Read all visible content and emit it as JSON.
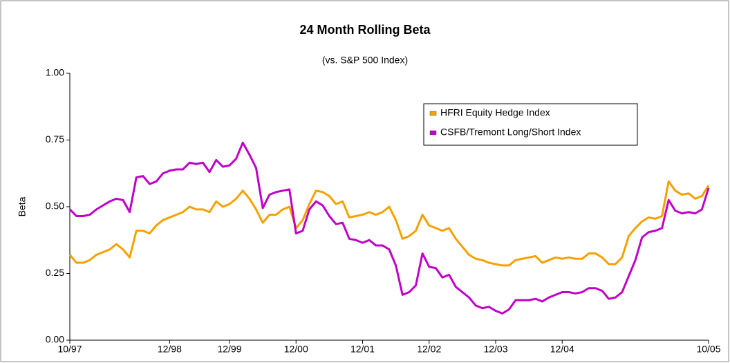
{
  "chart_data": {
    "type": "line",
    "title": "24 Month Rolling Beta",
    "subtitle": "(vs. S&P 500 Index)",
    "y_label": "Beta",
    "categories": [
      "10/97",
      null,
      null,
      null,
      null,
      null,
      null,
      null,
      null,
      null,
      null,
      null,
      null,
      null,
      null,
      "12/98",
      null,
      null,
      null,
      null,
      null,
      null,
      null,
      null,
      "12/99",
      null,
      null,
      null,
      null,
      null,
      null,
      null,
      null,
      null,
      "12/00",
      null,
      null,
      null,
      null,
      null,
      null,
      null,
      null,
      null,
      "12/01",
      null,
      null,
      null,
      null,
      null,
      null,
      null,
      null,
      null,
      "12/02",
      null,
      null,
      null,
      null,
      null,
      null,
      null,
      null,
      null,
      "12/03",
      null,
      null,
      null,
      null,
      null,
      null,
      null,
      null,
      null,
      "12/04",
      null,
      null,
      null,
      null,
      null,
      null,
      null,
      null,
      null,
      null,
      null,
      null,
      null,
      null,
      null,
      null,
      null,
      null,
      null,
      null,
      null,
      "10/05"
    ],
    "series": [
      {
        "name": "HFRI Equity Hedge Index",
        "color": "#f5a100",
        "values": [
          0.32,
          0.29,
          0.29,
          0.3,
          0.32,
          0.33,
          0.34,
          0.36,
          0.34,
          0.31,
          0.41,
          0.41,
          0.4,
          0.43,
          0.45,
          0.46,
          0.47,
          0.48,
          0.5,
          0.49,
          0.49,
          0.48,
          0.52,
          0.5,
          0.51,
          0.53,
          0.56,
          0.53,
          0.49,
          0.44,
          0.47,
          0.47,
          0.49,
          0.5,
          0.42,
          0.45,
          0.51,
          0.56,
          0.555,
          0.54,
          0.51,
          0.52,
          0.46,
          0.465,
          0.47,
          0.48,
          0.47,
          0.48,
          0.5,
          0.45,
          0.38,
          0.39,
          0.41,
          0.47,
          0.43,
          0.42,
          0.41,
          0.42,
          0.38,
          0.35,
          0.32,
          0.305,
          0.3,
          0.29,
          0.285,
          0.28,
          0.28,
          0.3,
          0.305,
          0.31,
          0.315,
          0.29,
          0.3,
          0.31,
          0.305,
          0.31,
          0.305,
          0.305,
          0.325,
          0.325,
          0.31,
          0.285,
          0.285,
          0.31,
          0.39,
          0.42,
          0.445,
          0.46,
          0.455,
          0.465,
          0.595,
          0.56,
          0.545,
          0.55,
          0.53,
          0.54,
          0.58
        ]
      },
      {
        "name": "CSFB/Tremont Long/Short Index",
        "color": "#c000c8",
        "values": [
          0.49,
          0.465,
          0.465,
          0.47,
          0.49,
          0.505,
          0.52,
          0.53,
          0.525,
          0.48,
          0.61,
          0.615,
          0.585,
          0.595,
          0.625,
          0.635,
          0.64,
          0.64,
          0.665,
          0.66,
          0.665,
          0.63,
          0.675,
          0.65,
          0.655,
          0.68,
          0.74,
          0.695,
          0.645,
          0.495,
          0.545,
          0.555,
          0.56,
          0.565,
          0.4,
          0.41,
          0.49,
          0.52,
          0.505,
          0.465,
          0.435,
          0.44,
          0.38,
          0.375,
          0.365,
          0.375,
          0.355,
          0.355,
          0.34,
          0.28,
          0.17,
          0.18,
          0.205,
          0.325,
          0.275,
          0.27,
          0.235,
          0.245,
          0.2,
          0.18,
          0.16,
          0.13,
          0.12,
          0.125,
          0.11,
          0.1,
          0.115,
          0.15,
          0.15,
          0.15,
          0.155,
          0.145,
          0.16,
          0.17,
          0.18,
          0.18,
          0.175,
          0.18,
          0.195,
          0.195,
          0.185,
          0.155,
          0.16,
          0.18,
          0.24,
          0.3,
          0.385,
          0.405,
          0.41,
          0.42,
          0.525,
          0.485,
          0.475,
          0.48,
          0.475,
          0.49,
          0.57
        ]
      }
    ],
    "ylim": [
      0,
      1
    ],
    "yticks": [
      {
        "value": 0,
        "label": "0.00"
      },
      {
        "value": 0.25,
        "label": "0.25"
      },
      {
        "value": 0.5,
        "label": "0.50"
      },
      {
        "value": 0.75,
        "label": "0.75"
      },
      {
        "value": 1,
        "label": "1.00"
      }
    ],
    "grid": false,
    "legend": "right"
  }
}
